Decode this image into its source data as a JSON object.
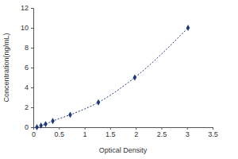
{
  "chart_data": {
    "type": "scatter",
    "x_label": "Optical Density",
    "y_label": "Concentration(ng/mL)",
    "x": [
      0.07,
      0.15,
      0.24,
      0.38,
      0.72,
      1.27,
      1.98,
      3.02
    ],
    "values": [
      0,
      0.156,
      0.313,
      0.625,
      1.25,
      2.5,
      5,
      10
    ],
    "color": "#1f3a7a",
    "marker": "diamond",
    "line_style": "dotted",
    "xlim": [
      0,
      3.5
    ],
    "xticks": [
      0,
      0.5,
      1,
      1.5,
      2,
      2.5,
      3,
      3.5
    ],
    "ylim": [
      0,
      12
    ],
    "yticks": [
      0,
      2,
      4,
      6,
      8,
      10,
      12
    ],
    "grid": false
  }
}
